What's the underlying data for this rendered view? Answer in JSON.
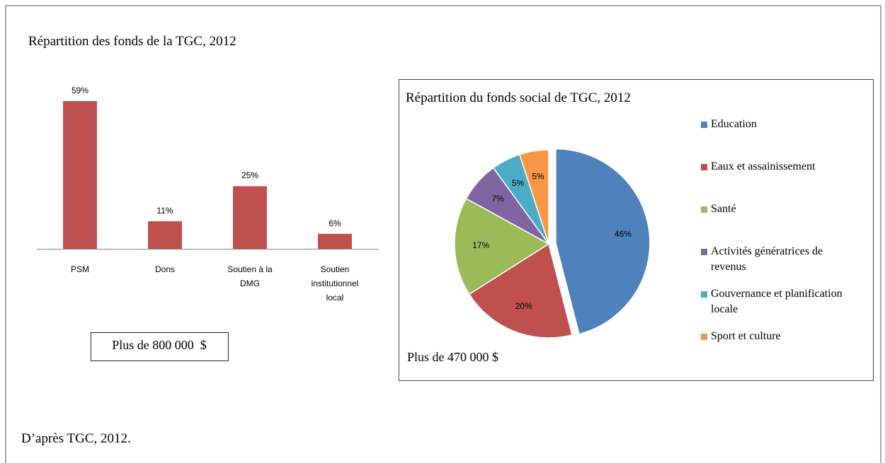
{
  "chart_data": [
    {
      "type": "bar",
      "title": "Répartition des fonds de la TGC, 2012",
      "categories": [
        "PSM",
        "Dons",
        "Soutien à la DMG",
        "Soutien institutionnel local"
      ],
      "values": [
        59,
        11,
        25,
        6
      ],
      "value_labels": [
        "59%",
        "11%",
        "25%",
        "6%"
      ],
      "color": "#c0504d",
      "annotation": "Plus de 800 000  $"
    },
    {
      "type": "pie",
      "title": "Répartition du fonds social de TGC, 2012",
      "categories": [
        "Education",
        "Eaux et assainissement",
        "Santé",
        "Activités génératrices de revenus",
        "Gouvernance et planification locale",
        "Sport et culture"
      ],
      "values": [
        46,
        20,
        17,
        7,
        5,
        5
      ],
      "value_labels": [
        "46%",
        "20%",
        "17%",
        "7%",
        "5%",
        "5%"
      ],
      "colors": [
        "#4f81bd",
        "#c0504d",
        "#9bbb59",
        "#8064a2",
        "#4bacc6",
        "#f79646"
      ],
      "annotation": "Plus de 470 000 $"
    }
  ],
  "source": "D’après TGC, 2012."
}
